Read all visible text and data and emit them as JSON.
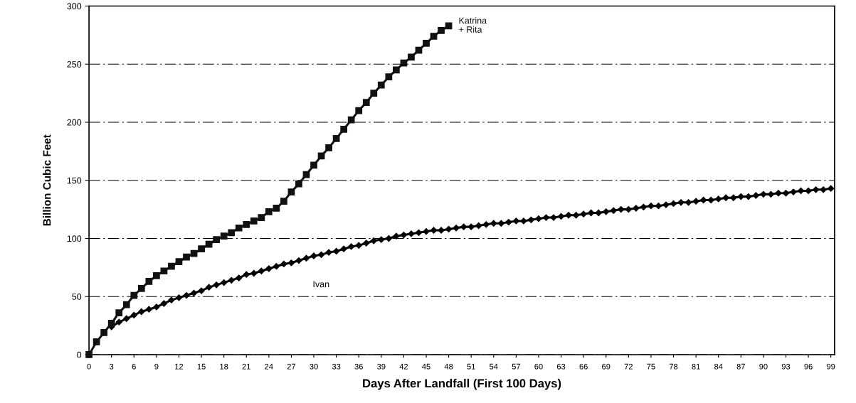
{
  "chart_data": {
    "type": "line",
    "xlabel": "Days After Landfall (First 100 Days)",
    "ylabel": "Billion Cubic Feet",
    "xlim": [
      0,
      99.5
    ],
    "ylim": [
      0,
      300
    ],
    "xticks": [
      0,
      3,
      6,
      9,
      12,
      15,
      18,
      21,
      24,
      27,
      30,
      33,
      36,
      39,
      42,
      45,
      48,
      51,
      54,
      57,
      60,
      63,
      66,
      69,
      72,
      75,
      78,
      81,
      84,
      87,
      90,
      93,
      96,
      99
    ],
    "yticks": [
      0,
      50,
      100,
      150,
      200,
      250,
      300
    ],
    "grid": "y",
    "legend": false,
    "line_style": "solid",
    "series": [
      {
        "name": "Katrina\n+ Rita",
        "color": "#111111",
        "marker": "square",
        "x": [
          0,
          1,
          2,
          3,
          4,
          5,
          6,
          7,
          8,
          9,
          10,
          11,
          12,
          13,
          14,
          15,
          16,
          17,
          18,
          19,
          20,
          21,
          22,
          23,
          24,
          25,
          26,
          27,
          28,
          29,
          30,
          31,
          32,
          33,
          34,
          35,
          36,
          37,
          38,
          39,
          40,
          41,
          42,
          43,
          44,
          45,
          46,
          47,
          48
        ],
        "values": [
          0,
          11,
          19,
          27,
          36,
          43,
          51,
          57,
          63,
          68,
          72,
          76,
          80,
          84,
          87,
          91,
          95,
          99,
          102,
          105,
          109,
          112,
          115,
          118,
          123,
          126,
          132,
          140,
          147,
          155,
          163,
          171,
          178,
          186,
          194,
          202,
          210,
          217,
          225,
          232,
          239,
          245,
          251,
          256,
          262,
          268,
          274,
          279,
          283
        ]
      },
      {
        "name": "Ivan",
        "color": "#000000",
        "marker": "diamond",
        "x": [
          0,
          1,
          2,
          3,
          4,
          5,
          6,
          7,
          8,
          9,
          10,
          11,
          12,
          13,
          14,
          15,
          16,
          17,
          18,
          19,
          20,
          21,
          22,
          23,
          24,
          25,
          26,
          27,
          28,
          29,
          30,
          31,
          32,
          33,
          34,
          35,
          36,
          37,
          38,
          39,
          40,
          41,
          42,
          43,
          44,
          45,
          46,
          47,
          48,
          49,
          50,
          51,
          52,
          53,
          54,
          55,
          56,
          57,
          58,
          59,
          60,
          61,
          62,
          63,
          64,
          65,
          66,
          67,
          68,
          69,
          70,
          71,
          72,
          73,
          74,
          75,
          76,
          77,
          78,
          79,
          80,
          81,
          82,
          83,
          84,
          85,
          86,
          87,
          88,
          89,
          90,
          91,
          92,
          93,
          94,
          95,
          96,
          97,
          98,
          99
        ],
        "values": [
          0,
          null,
          null,
          24,
          28,
          31,
          34,
          37,
          39,
          41,
          44,
          47,
          49,
          51,
          53,
          55,
          58,
          60,
          62,
          64,
          66,
          69,
          70,
          72,
          74,
          76,
          78,
          79,
          81,
          83,
          85,
          86,
          88,
          89,
          91,
          93,
          94,
          96,
          98,
          99,
          100,
          102,
          103,
          104,
          105,
          106,
          107,
          107,
          108,
          109,
          110,
          110,
          111,
          112,
          113,
          113,
          114,
          115,
          115,
          116,
          117,
          118,
          118,
          119,
          120,
          120,
          121,
          122,
          122,
          123,
          124,
          125,
          125,
          126,
          127,
          128,
          128,
          129,
          130,
          131,
          131,
          132,
          133,
          133,
          134,
          135,
          135,
          136,
          136,
          137,
          138,
          138,
          139,
          139,
          140,
          141,
          141,
          142,
          142,
          143
        ]
      }
    ]
  }
}
